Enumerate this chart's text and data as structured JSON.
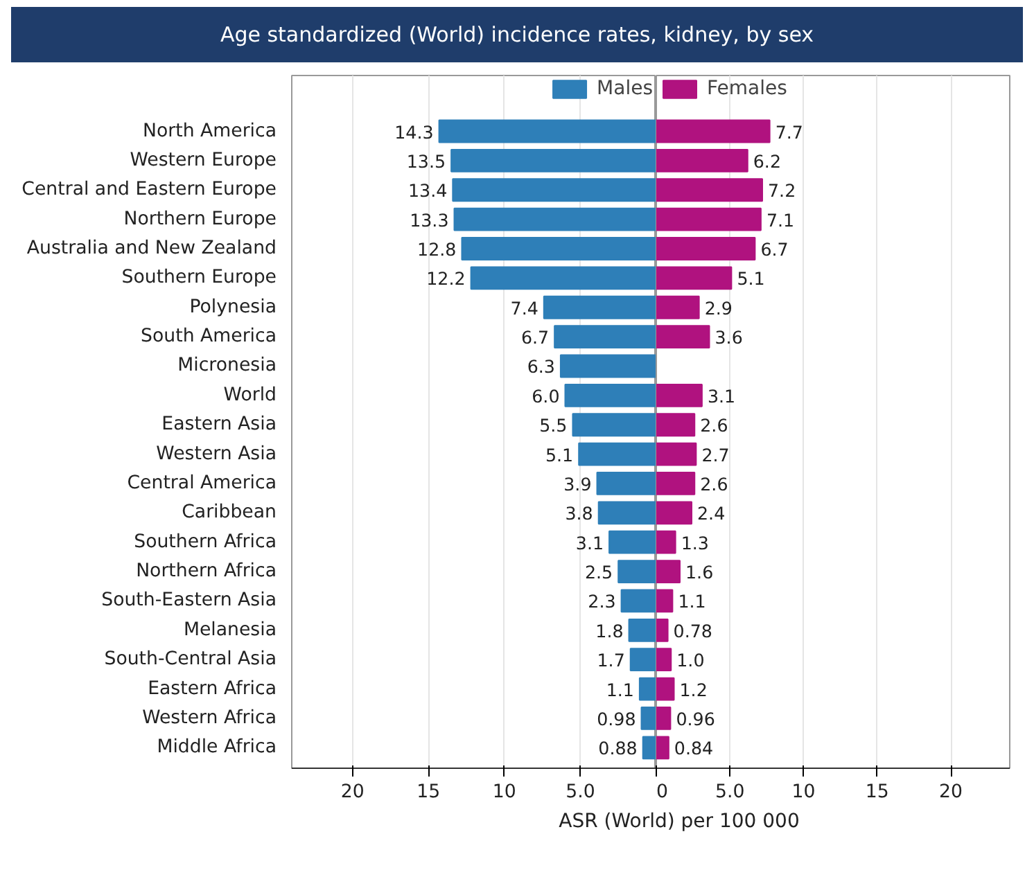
{
  "chart_data": [
    {
      "type": "bar",
      "orientation": "horizontal",
      "title": "Age standardized (World) incidence rates, kidney, by sex",
      "xlabel": "ASR (World) per 100 000",
      "categories": [
        "North America",
        "Western Europe",
        "Central and Eastern Europe",
        "Northern Europe",
        "Australia and New Zealand",
        "Southern Europe",
        "Polynesia",
        "South America",
        "Micronesia",
        "World",
        "Eastern Asia",
        "Western Asia",
        "Central America",
        "Caribbean",
        "Southern Africa",
        "Northern Africa",
        "South-Eastern Asia",
        "Melanesia",
        "South-Central Asia",
        "Eastern Africa",
        "Western Africa",
        "Middle Africa"
      ],
      "series": [
        {
          "name": "Males",
          "color": "#2e7fb8",
          "values": [
            14.3,
            13.5,
            13.4,
            13.3,
            12.8,
            12.2,
            7.4,
            6.7,
            6.3,
            6.0,
            5.5,
            5.1,
            3.9,
            3.8,
            3.1,
            2.5,
            2.3,
            1.8,
            1.7,
            1.1,
            0.98,
            0.88
          ],
          "value_labels": [
            "14.3",
            "13.5",
            "13.4",
            "13.3",
            "12.8",
            "12.2",
            "7.4",
            "6.7",
            "6.3",
            "6.0",
            "5.5",
            "5.1",
            "3.9",
            "3.8",
            "3.1",
            "2.5",
            "2.3",
            "1.8",
            "1.7",
            "1.1",
            "0.98",
            "0.88"
          ]
        }
      ],
      "xlim": [
        24,
        0
      ],
      "xticks": [
        20,
        15,
        10,
        {
          "value": 5,
          "label": "5.0"
        }
      ],
      "grid": "x",
      "legend": "top right"
    },
    {
      "type": "bar",
      "orientation": "horizontal",
      "categories": [
        null,
        null,
        null,
        null,
        null,
        null,
        null,
        null,
        null,
        null,
        null,
        null,
        null,
        null,
        null,
        null,
        null,
        null,
        null,
        null,
        null,
        null
      ],
      "series": [
        {
          "name": "Females",
          "color": "#b0127f",
          "values": [
            7.7,
            6.2,
            7.2,
            7.1,
            6.7,
            5.1,
            2.9,
            3.6,
            null,
            3.1,
            2.6,
            2.7,
            2.6,
            2.4,
            1.3,
            1.6,
            1.1,
            0.78,
            1.0,
            1.2,
            0.96,
            0.84
          ],
          "value_labels": [
            "7.7",
            "6.2",
            "7.2",
            "7.1",
            "6.7",
            "5.1",
            "2.9",
            "3.6",
            null,
            "3.1",
            "2.6",
            "2.7",
            "2.6",
            "2.4",
            "1.3",
            "1.6",
            "1.1",
            "0.78",
            "1.0",
            "1.2",
            "0.96",
            "0.84"
          ]
        }
      ],
      "xlim": [
        0,
        24
      ],
      "xticks": [
        0,
        {
          "value": 5,
          "label": "5.0"
        },
        10,
        15,
        20
      ],
      "grid": "x",
      "legend": "top left",
      "tick_labels": "x"
    }
  ]
}
